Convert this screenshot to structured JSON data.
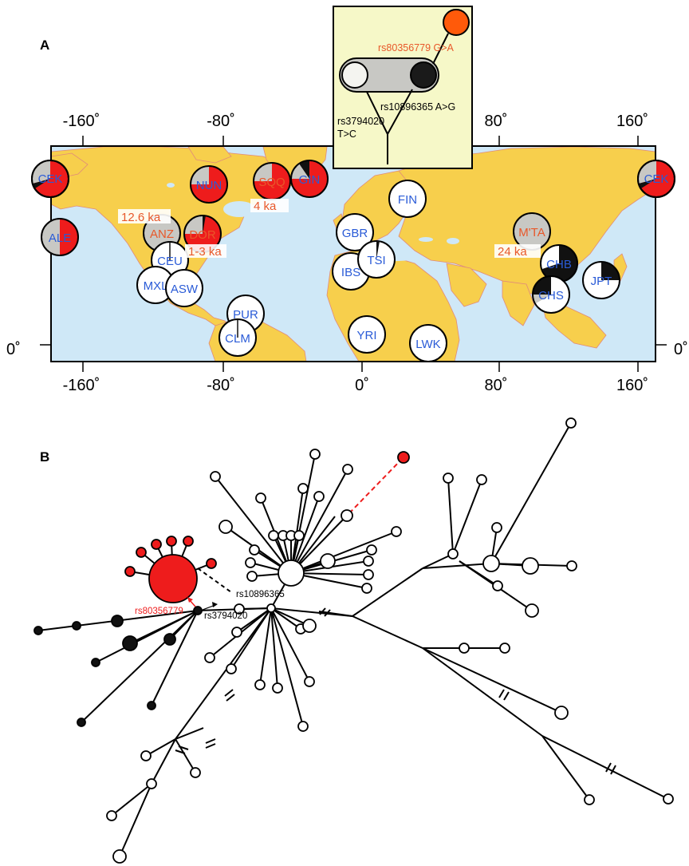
{
  "panels": {
    "a_label": "A",
    "b_label": "B"
  },
  "axes": {
    "x_ticks": [
      "-160˚",
      "-80˚",
      "0˚",
      "80˚",
      "160˚"
    ],
    "y_tick": "0˚"
  },
  "colors": {
    "ocean": "#cfe8f7",
    "land": "#f7cf4c",
    "derived_red": "#ee1c1c",
    "ancestral_white": "#ffffff",
    "black_haplotype": "#111111",
    "grey": "#c8c8c4",
    "population_text": "#2a5bd7",
    "highlight_text": "#e8582a",
    "inset_bg": "#f6f8c8"
  },
  "populations": [
    {
      "name": "CEK",
      "style": "red"
    },
    {
      "name": "NUN",
      "style": "red"
    },
    {
      "name": "SQQ",
      "style": "red"
    },
    {
      "name": "GIN",
      "style": "red"
    },
    {
      "name": "ALE",
      "style": "red"
    },
    {
      "name": "ANZ",
      "style": "ancient"
    },
    {
      "name": "DOR",
      "style": "ancient"
    },
    {
      "name": "CEU",
      "style": "modern"
    },
    {
      "name": "MXL",
      "style": "modern"
    },
    {
      "name": "ASW",
      "style": "modern"
    },
    {
      "name": "PUR",
      "style": "modern"
    },
    {
      "name": "CLM",
      "style": "modern"
    },
    {
      "name": "FIN",
      "style": "modern"
    },
    {
      "name": "GBR",
      "style": "modern"
    },
    {
      "name": "IBS",
      "style": "modern"
    },
    {
      "name": "TSI",
      "style": "modern"
    },
    {
      "name": "YRI",
      "style": "modern"
    },
    {
      "name": "LWK",
      "style": "modern"
    },
    {
      "name": "M'TA",
      "style": "ancient"
    },
    {
      "name": "CHB",
      "style": "modern"
    },
    {
      "name": "CHS",
      "style": "modern"
    },
    {
      "name": "JPT",
      "style": "modern"
    }
  ],
  "ages": {
    "anz": "12.6 ka",
    "dor": "1-3 ka",
    "sqq": "4 ka",
    "mta": "24 ka"
  },
  "inset": {
    "snp_red": "rs80356779 G>A",
    "snp_black": "rs10896365 A>G",
    "snp_root_line1": "rs3794020",
    "snp_root_line2": "T>C"
  },
  "network": {
    "snp_red": "rs80356779",
    "snp_root": "rs3794020",
    "snp_dashed": "rs10896365"
  }
}
